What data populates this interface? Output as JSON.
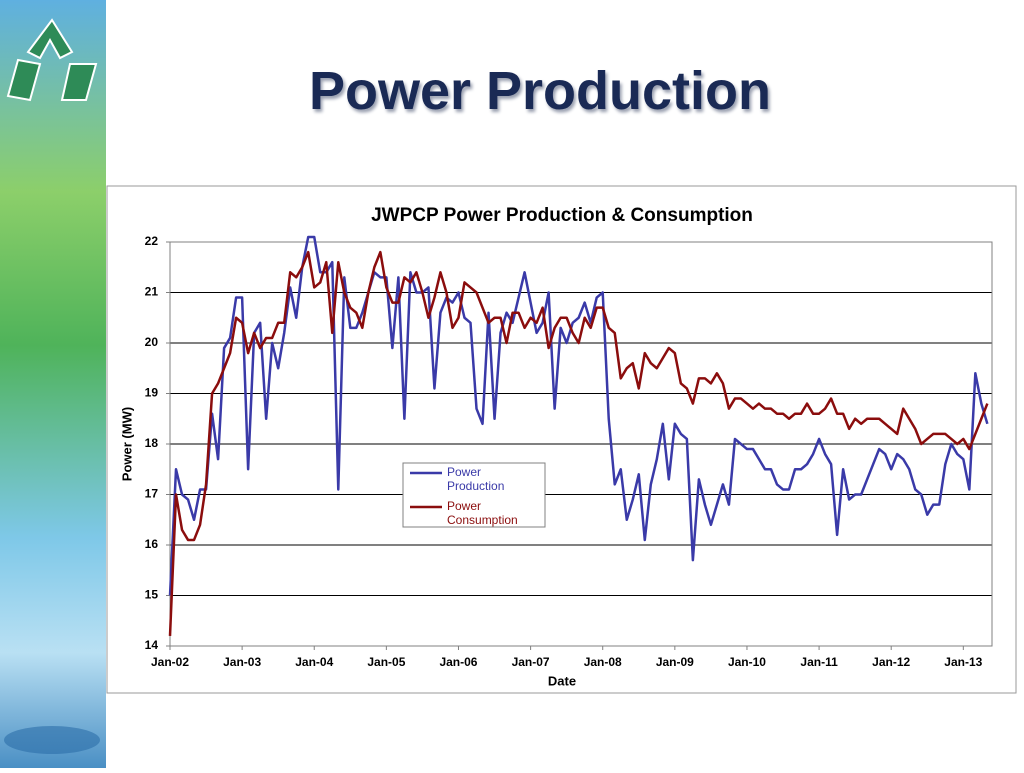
{
  "slide_title": "Power Production",
  "chart_data": {
    "type": "line",
    "title": "JWPCP Power Production & Consumption",
    "x_label": "Date",
    "y_label": "Power (MW)",
    "categories": [
      "Jan-02",
      null,
      null,
      null,
      null,
      null,
      null,
      null,
      null,
      null,
      null,
      null,
      "Jan-03",
      null,
      null,
      null,
      null,
      null,
      null,
      null,
      null,
      null,
      null,
      null,
      "Jan-04",
      null,
      null,
      null,
      null,
      null,
      null,
      null,
      null,
      null,
      null,
      null,
      "Jan-05",
      null,
      null,
      null,
      null,
      null,
      null,
      null,
      null,
      null,
      null,
      null,
      "Jan-06",
      null,
      null,
      null,
      null,
      null,
      null,
      null,
      null,
      null,
      null,
      null,
      "Jan-07",
      null,
      null,
      null,
      null,
      null,
      null,
      null,
      null,
      null,
      null,
      null,
      "Jan-08",
      null,
      null,
      null,
      null,
      null,
      null,
      null,
      null,
      null,
      null,
      null,
      "Jan-09",
      null,
      null,
      null,
      null,
      null,
      null,
      null,
      null,
      null,
      null,
      null,
      "Jan-10",
      null,
      null,
      null,
      null,
      null,
      null,
      null,
      null,
      null,
      null,
      null,
      "Jan-11",
      null,
      null,
      null,
      null,
      null,
      null,
      null,
      null,
      null,
      null,
      null,
      "Jan-12",
      null,
      null,
      null,
      null,
      null,
      null,
      null,
      null,
      null,
      null,
      null,
      "Jan-13",
      null,
      null,
      null,
      null
    ],
    "series": [
      {
        "name": "Power Production",
        "color": "#3a3aa8",
        "values": [
          15.0,
          17.5,
          17.0,
          16.9,
          16.5,
          17.1,
          17.1,
          18.6,
          17.7,
          19.9,
          20.1,
          20.9,
          20.9,
          17.5,
          20.2,
          20.4,
          18.5,
          20.0,
          19.5,
          20.2,
          21.1,
          20.5,
          21.5,
          22.1,
          22.1,
          21.4,
          21.4,
          21.6,
          17.1,
          21.3,
          20.3,
          20.3,
          20.6,
          21.0,
          21.4,
          21.3,
          21.3,
          19.9,
          21.3,
          18.5,
          21.4,
          21.0,
          21.0,
          21.1,
          19.1,
          20.6,
          20.9,
          20.8,
          21.0,
          20.5,
          20.4,
          18.7,
          18.4,
          20.6,
          18.5,
          20.2,
          20.6,
          20.4,
          20.9,
          21.4,
          20.8,
          20.2,
          20.4,
          21.0,
          18.7,
          20.3,
          20.0,
          20.4,
          20.5,
          20.8,
          20.4,
          20.9,
          21.0,
          18.5,
          17.2,
          17.5,
          16.5,
          16.9,
          17.4,
          16.1,
          17.2,
          17.7,
          18.4,
          17.3,
          18.4,
          18.2,
          18.1,
          15.7,
          17.3,
          16.8,
          16.4,
          16.8,
          17.2,
          16.8,
          18.1,
          18.0,
          17.9,
          17.9,
          17.7,
          17.5,
          17.5,
          17.2,
          17.1,
          17.1,
          17.5,
          17.5,
          17.6,
          17.8,
          18.1,
          17.8,
          17.6,
          16.2,
          17.5,
          16.9,
          17.0,
          17.0,
          17.3,
          17.6,
          17.9,
          17.8,
          17.5,
          17.8,
          17.7,
          17.5,
          17.1,
          17.0,
          16.6,
          16.8,
          16.8,
          17.6,
          18.0,
          17.8,
          17.7,
          17.1,
          19.4,
          18.8,
          18.4
        ]
      },
      {
        "name": "Power Consumption",
        "color": "#8b0d0d",
        "values": [
          14.2,
          17.0,
          16.3,
          16.1,
          16.1,
          16.4,
          17.2,
          19.0,
          19.2,
          19.5,
          19.8,
          20.5,
          20.4,
          19.8,
          20.2,
          19.9,
          20.1,
          20.1,
          20.4,
          20.4,
          21.4,
          21.3,
          21.5,
          21.8,
          21.1,
          21.2,
          21.6,
          20.2,
          21.6,
          21.0,
          20.7,
          20.6,
          20.3,
          21.0,
          21.5,
          21.8,
          21.1,
          20.8,
          20.8,
          21.3,
          21.2,
          21.4,
          21.0,
          20.5,
          20.9,
          21.4,
          21.0,
          20.3,
          20.5,
          21.2,
          21.1,
          21.0,
          20.7,
          20.4,
          20.5,
          20.5,
          20.0,
          20.6,
          20.6,
          20.3,
          20.5,
          20.4,
          20.7,
          19.9,
          20.3,
          20.5,
          20.5,
          20.2,
          20.0,
          20.5,
          20.3,
          20.7,
          20.7,
          20.3,
          20.2,
          19.3,
          19.5,
          19.6,
          19.1,
          19.8,
          19.6,
          19.5,
          19.7,
          19.9,
          19.8,
          19.2,
          19.1,
          18.8,
          19.3,
          19.3,
          19.2,
          19.4,
          19.2,
          18.7,
          18.9,
          18.9,
          18.8,
          18.7,
          18.8,
          18.7,
          18.7,
          18.6,
          18.6,
          18.5,
          18.6,
          18.6,
          18.8,
          18.6,
          18.6,
          18.7,
          18.9,
          18.6,
          18.6,
          18.3,
          18.5,
          18.4,
          18.5,
          18.5,
          18.5,
          18.4,
          18.3,
          18.2,
          18.7,
          18.5,
          18.3,
          18.0,
          18.1,
          18.2,
          18.2,
          18.2,
          18.1,
          18.0,
          18.1,
          17.9,
          18.2,
          18.5,
          18.8
        ]
      }
    ],
    "ylim": [
      14,
      22
    ],
    "yticks": [
      14,
      15,
      16,
      17,
      18,
      19,
      20,
      21,
      22
    ],
    "grid": true,
    "legend": "center-left"
  }
}
